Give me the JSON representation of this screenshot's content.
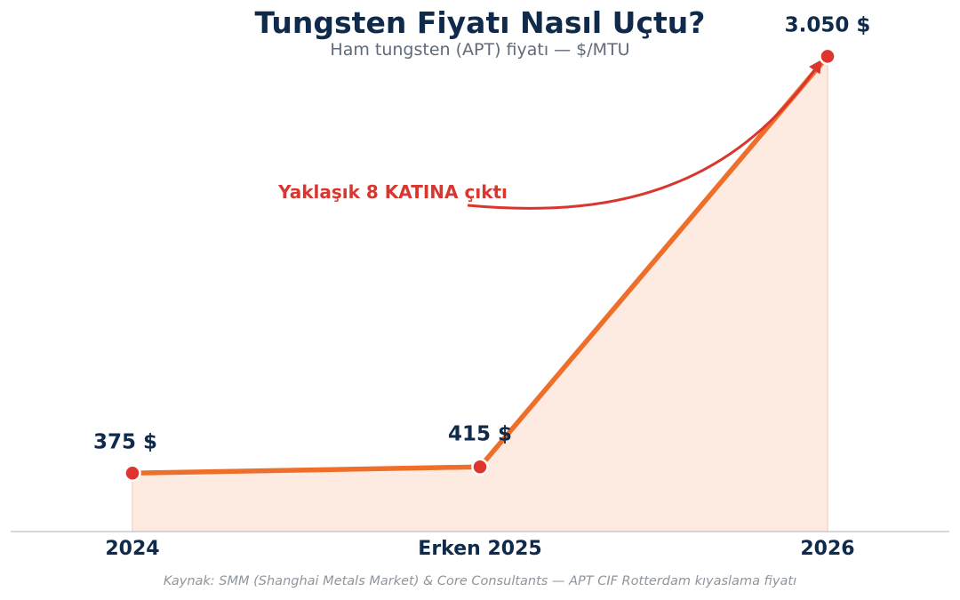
{
  "header": {
    "title": "Tungsten Fiyatı Nasıl Uçtu?",
    "subtitle": "Ham tungsten (APT) fiyatı — $/MTU"
  },
  "footer": {
    "source": "Kaynak: SMM (Shanghai Metals Market) & Core Consultants — APT CIF Rotterdam kıyaslama fiyatı"
  },
  "chart_data": {
    "type": "line",
    "title": "Tungsten Fiyatı Nasıl Uçtu?",
    "subtitle": "Ham tungsten (APT) fiyatı — $/MTU",
    "categories": [
      "2024",
      "Erken 2025",
      "2026"
    ],
    "series": [
      {
        "values": [
          375,
          415,
          3050
        ],
        "data_labels": [
          "375 $",
          "415 $",
          "3.050 $"
        ]
      }
    ],
    "ylim": [
      0,
      3400
    ],
    "grid": false,
    "legend": "none",
    "annotation": {
      "text": "Yaklaşık 8 KATINA çıktı",
      "points_to": "2026"
    },
    "colors": {
      "line": "#ee6f2a",
      "area": "#fdeae1",
      "marker": "#e0352e",
      "annotation": "#d8362f",
      "text": "#0f2a4a"
    }
  }
}
